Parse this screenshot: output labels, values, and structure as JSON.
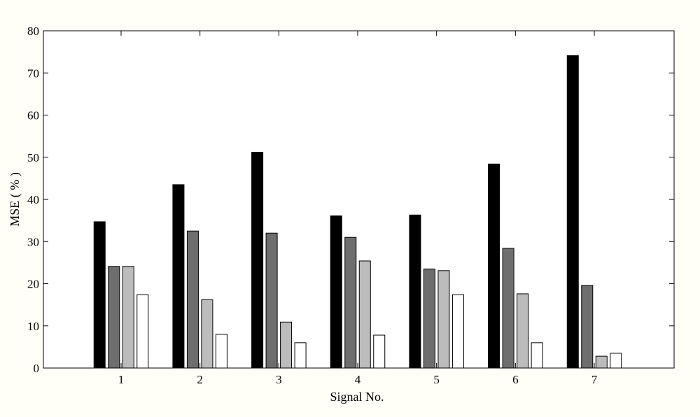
{
  "chart_data": {
    "type": "bar",
    "title": "",
    "xlabel": "Signal No.",
    "ylabel": "MSE ( % )",
    "categories": [
      "1",
      "2",
      "3",
      "4",
      "5",
      "6",
      "7"
    ],
    "ylim": [
      0,
      80
    ],
    "yticks": [
      0,
      10,
      20,
      30,
      40,
      50,
      60,
      70,
      80
    ],
    "grid": false,
    "legend": "none",
    "series": [
      {
        "color": "#000000",
        "values": [
          34.7,
          43.5,
          51.2,
          36.1,
          36.3,
          48.4,
          74.1
        ]
      },
      {
        "color": "#6e6e6e",
        "values": [
          24.1,
          32.5,
          32.0,
          31.0,
          23.5,
          28.4,
          19.6
        ]
      },
      {
        "color": "#bcbcbc",
        "values": [
          24.1,
          16.2,
          10.9,
          25.4,
          23.1,
          17.6,
          2.8
        ]
      },
      {
        "color": "#ffffff",
        "values": [
          17.4,
          8.0,
          6.0,
          7.8,
          17.4,
          6.0,
          3.5
        ]
      }
    ]
  }
}
